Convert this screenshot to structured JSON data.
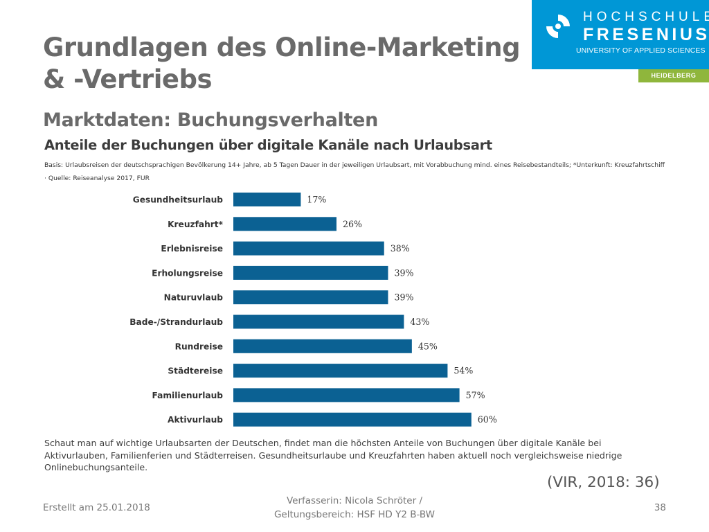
{
  "slide": {
    "title_line1": "Grundlagen des Online-Marketing",
    "title_line2": "& -Vertriebs",
    "subtitle": "Marktdaten: Buchungsverhalten"
  },
  "logo": {
    "line1": "HOCHSCHULE",
    "line2": "FRESENIUS",
    "line3": "UNIVERSITY OF APPLIED SCIENCES",
    "campus": "HEIDELBERG",
    "colors": {
      "primary": "#0097d6",
      "campus": "#8fb63c"
    }
  },
  "chart_data": {
    "type": "bar",
    "orientation": "horizontal",
    "title": "Anteile der Buchungen über digitale Kanäle nach Urlaubsart",
    "subtitle": "Basis: Urlaubsreisen der deutschsprachigen Bevölkerung 14+ Jahre, ab 5 Tagen Dauer in der jeweiligen Urlaubsart, mit Vorabbuchung mind. eines Reisebestandteils; *Unterkunft: Kreuzfahrtschiff · Quelle: Reiseanalyse 2017, FUR",
    "categories": [
      "Gesundheitsurlaub",
      "Kreuzfahrt*",
      "Erlebnisreise",
      "Erholungsreise",
      "Naturuvlaub",
      "Bade-/Strandurlaub",
      "Rundreise",
      "Städtereise",
      "Familienurlaub",
      "Aktivurlaub"
    ],
    "values": [
      17,
      26,
      38,
      39,
      39,
      43,
      45,
      54,
      57,
      60
    ],
    "value_labels": [
      "17%",
      "26%",
      "38%",
      "39%",
      "39%",
      "43%",
      "45%",
      "54%",
      "57%",
      "60%"
    ],
    "xlim": [
      0,
      100
    ],
    "grid": false,
    "bar_color": "#0b6193"
  },
  "note": "Schaut man auf wichtige Urlaubsarten der Deutschen, findet man die höchsten Anteile von Buchungen über digitale Kanäle bei Aktivurlauben, Familienferien und Städterreisen. Gesundheitsurlaube und Kreuzfahrten haben aktuell noch vergleichsweise niedrige Onlinebuchungsanteile.",
  "citation": "(VIR, 2018: 36)",
  "footer": {
    "date": "Erstellt am 25.01.2018",
    "author_line1": "Verfasserin: Nicola Schröter /",
    "author_line2": "Geltungsbereich:  HSF HD Y2 B-BW",
    "page": "38"
  }
}
